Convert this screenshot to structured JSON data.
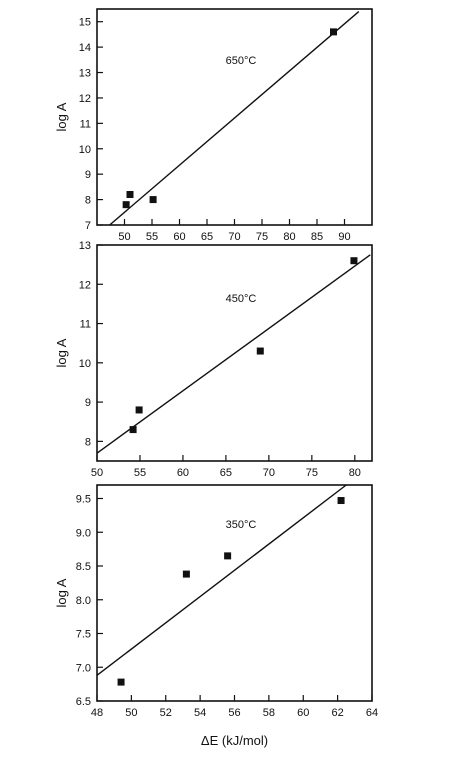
{
  "chart_data": [
    {
      "type": "scatter",
      "annotation": "650°C",
      "xlabel": "",
      "ylabel": "log A",
      "xlim": [
        45,
        95
      ],
      "ylim": [
        7,
        15.5
      ],
      "xticks": [
        50,
        55,
        60,
        65,
        70,
        75,
        80,
        85,
        90
      ],
      "yticks": [
        7,
        8,
        9,
        10,
        11,
        12,
        13,
        14,
        15
      ],
      "points": [
        {
          "x": 50.3,
          "y": 7.8
        },
        {
          "x": 51.0,
          "y": 8.2
        },
        {
          "x": 55.2,
          "y": 8.0
        },
        {
          "x": 88.0,
          "y": 14.6
        }
      ],
      "fit_line": [
        [
          47.3,
          7.0
        ],
        [
          92.6,
          15.4
        ]
      ],
      "grid": false,
      "legend": "none"
    },
    {
      "type": "scatter",
      "annotation": "450°C",
      "xlabel": "",
      "ylabel": "log A",
      "xlim": [
        50,
        82
      ],
      "ylim": [
        7.5,
        13
      ],
      "xticks": [
        50,
        55,
        60,
        65,
        70,
        75,
        80
      ],
      "yticks": [
        8,
        9,
        10,
        11,
        12,
        13
      ],
      "points": [
        {
          "x": 54.2,
          "y": 8.3
        },
        {
          "x": 54.9,
          "y": 8.8
        },
        {
          "x": 69.0,
          "y": 10.3
        },
        {
          "x": 79.9,
          "y": 12.6
        }
      ],
      "fit_line": [
        [
          50.0,
          7.7
        ],
        [
          81.8,
          12.75
        ]
      ],
      "grid": false,
      "legend": "none"
    },
    {
      "type": "scatter",
      "annotation": "350°C",
      "xlabel": "ΔE (kJ/mol)",
      "ylabel": "log A",
      "xlim": [
        48,
        64
      ],
      "ylim": [
        6.5,
        9.7
      ],
      "xticks": [
        48,
        50,
        52,
        54,
        56,
        58,
        60,
        62,
        64
      ],
      "yticks": [
        "6.5",
        "7.0",
        "7.5",
        "8.0",
        "8.5",
        "9.0",
        "9.5"
      ],
      "points": [
        {
          "x": 49.4,
          "y": 6.78
        },
        {
          "x": 53.2,
          "y": 8.38
        },
        {
          "x": 55.6,
          "y": 8.65
        },
        {
          "x": 62.2,
          "y": 9.47
        }
      ],
      "fit_line": [
        [
          48.0,
          6.88
        ],
        [
          62.5,
          9.7
        ]
      ],
      "grid": false,
      "legend": "none"
    }
  ]
}
